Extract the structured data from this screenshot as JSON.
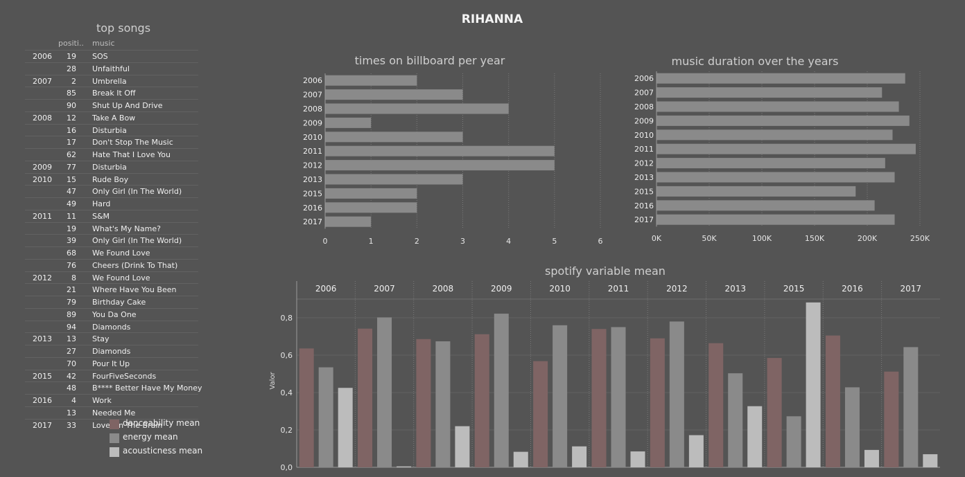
{
  "page_title": "RIHANNA",
  "top_songs": {
    "title": "top songs",
    "header": {
      "year": "",
      "position": "positi..",
      "music": "music"
    },
    "rows": [
      {
        "year": "2006",
        "position": "19",
        "music": "SOS"
      },
      {
        "year": "",
        "position": "28",
        "music": "Unfaithful"
      },
      {
        "year": "2007",
        "position": "2",
        "music": "Umbrella"
      },
      {
        "year": "",
        "position": "85",
        "music": "Break It Off"
      },
      {
        "year": "",
        "position": "90",
        "music": "Shut Up And Drive"
      },
      {
        "year": "2008",
        "position": "12",
        "music": "Take A Bow"
      },
      {
        "year": "",
        "position": "16",
        "music": "Disturbia"
      },
      {
        "year": "",
        "position": "17",
        "music": "Don't Stop The Music"
      },
      {
        "year": "",
        "position": "62",
        "music": "Hate That I Love You"
      },
      {
        "year": "2009",
        "position": "77",
        "music": "Disturbia"
      },
      {
        "year": "2010",
        "position": "15",
        "music": "Rude Boy"
      },
      {
        "year": "",
        "position": "47",
        "music": "Only Girl (In The World)"
      },
      {
        "year": "",
        "position": "49",
        "music": "Hard"
      },
      {
        "year": "2011",
        "position": "11",
        "music": "S&M"
      },
      {
        "year": "",
        "position": "19",
        "music": "What's My Name?"
      },
      {
        "year": "",
        "position": "39",
        "music": "Only Girl (In The World)"
      },
      {
        "year": "",
        "position": "68",
        "music": "We Found Love"
      },
      {
        "year": "",
        "position": "76",
        "music": "Cheers (Drink To That)"
      },
      {
        "year": "2012",
        "position": "8",
        "music": "We Found Love"
      },
      {
        "year": "",
        "position": "21",
        "music": "Where Have You Been"
      },
      {
        "year": "",
        "position": "79",
        "music": "Birthday Cake"
      },
      {
        "year": "",
        "position": "89",
        "music": "You Da One"
      },
      {
        "year": "",
        "position": "94",
        "music": "Diamonds"
      },
      {
        "year": "2013",
        "position": "13",
        "music": "Stay"
      },
      {
        "year": "",
        "position": "27",
        "music": "Diamonds"
      },
      {
        "year": "",
        "position": "70",
        "music": "Pour It Up"
      },
      {
        "year": "2015",
        "position": "42",
        "music": "FourFiveSeconds"
      },
      {
        "year": "",
        "position": "48",
        "music": "B**** Better Have My Money"
      },
      {
        "year": "2016",
        "position": "4",
        "music": "Work"
      },
      {
        "year": "",
        "position": "13",
        "music": "Needed Me"
      },
      {
        "year": "2017",
        "position": "33",
        "music": "Love On The Brain"
      }
    ]
  },
  "legend": [
    {
      "label": "danceability mean",
      "color": "#7f6464"
    },
    {
      "label": "energy mean",
      "color": "#8a8a8a"
    },
    {
      "label": "acousticness mean",
      "color": "#bcbcbc"
    }
  ],
  "chart_data": [
    {
      "type": "bar",
      "orientation": "horizontal",
      "title": "times on billboard per year",
      "categories": [
        "2006",
        "2007",
        "2008",
        "2009",
        "2010",
        "2011",
        "2012",
        "2013",
        "2015",
        "2016",
        "2017"
      ],
      "values": [
        2,
        3,
        4,
        1,
        3,
        5,
        5,
        3,
        2,
        2,
        1
      ],
      "xticks": [
        "0",
        "1",
        "2",
        "3",
        "4",
        "5",
        "6"
      ],
      "xlim": [
        0,
        6
      ],
      "color": "#8a8a8a"
    },
    {
      "type": "bar",
      "orientation": "horizontal",
      "title": "music duration over the years",
      "categories": [
        "2006",
        "2007",
        "2008",
        "2009",
        "2010",
        "2011",
        "2012",
        "2013",
        "2015",
        "2016",
        "2017"
      ],
      "values": [
        236000,
        214000,
        230000,
        240000,
        224000,
        246000,
        217000,
        226000,
        189000,
        207000,
        226000
      ],
      "xticks": [
        "0K",
        "50K",
        "100K",
        "150K",
        "200K",
        "250K"
      ],
      "xlim": [
        0,
        250000
      ],
      "color": "#8a8a8a"
    },
    {
      "type": "bar",
      "title": "spotify variable mean",
      "ylabel": "Valor",
      "ylim": [
        0,
        0.9
      ],
      "yticks": [
        "0,0",
        "0,2",
        "0,4",
        "0,6",
        "0,8"
      ],
      "categories": [
        "2006",
        "2007",
        "2008",
        "2009",
        "2010",
        "2011",
        "2012",
        "2013",
        "2015",
        "2016",
        "2017"
      ],
      "series": [
        {
          "name": "danceability mean",
          "color": "#7f6464",
          "values": [
            0.636,
            0.742,
            0.686,
            0.712,
            0.568,
            0.74,
            0.69,
            0.664,
            0.585,
            0.705,
            0.512
          ]
        },
        {
          "name": "energy mean",
          "color": "#8a8a8a",
          "values": [
            0.535,
            0.802,
            0.674,
            0.822,
            0.76,
            0.75,
            0.78,
            0.503,
            0.273,
            0.428,
            0.643
          ]
        },
        {
          "name": "acousticness mean",
          "color": "#bcbcbc",
          "values": [
            0.425,
            0.005,
            0.22,
            0.083,
            0.112,
            0.085,
            0.172,
            0.327,
            0.882,
            0.093,
            0.07
          ]
        }
      ]
    }
  ]
}
